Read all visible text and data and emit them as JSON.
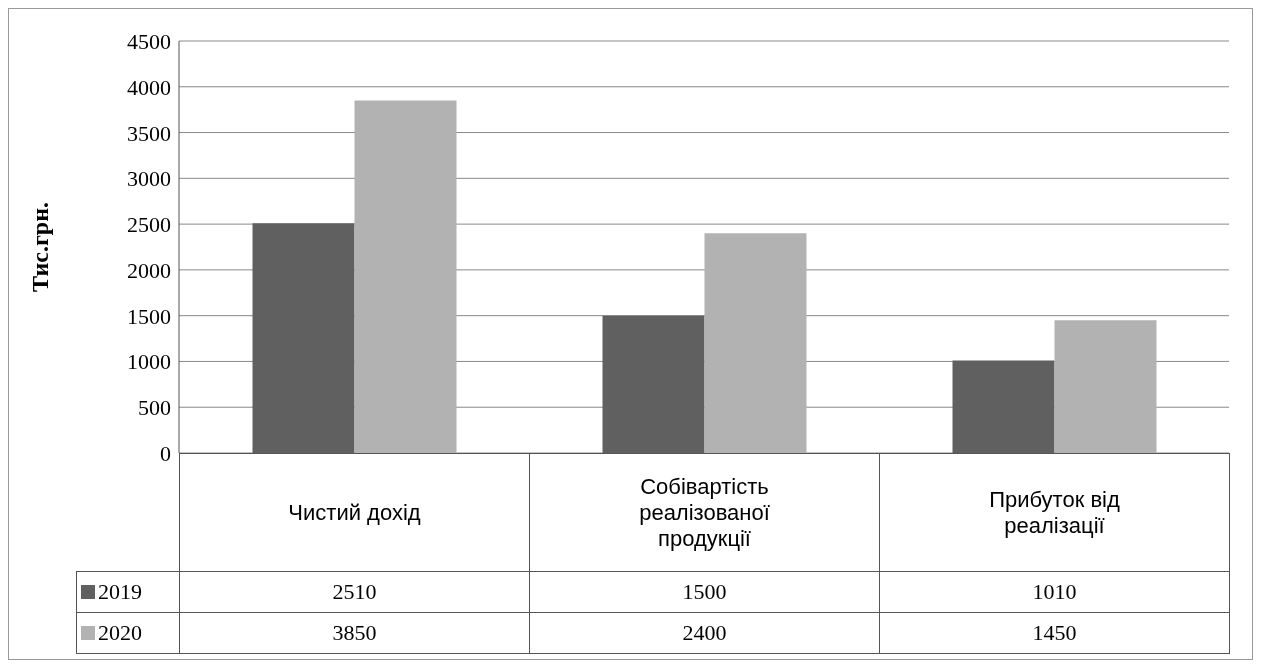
{
  "chart_data": {
    "type": "bar",
    "ylabel": "Тис.грн.",
    "categories": [
      "Чистий дохід",
      "Собівартість реалізованої продукції",
      "Прибуток від реалізації"
    ],
    "series": [
      {
        "name": "2019",
        "color": "#606060",
        "values": [
          2510,
          1500,
          1010
        ]
      },
      {
        "name": "2020",
        "color": "#b2b2b2",
        "values": [
          3850,
          2400,
          1450
        ]
      }
    ],
    "ylim": [
      0,
      4500
    ],
    "yticks": [
      0,
      500,
      1000,
      1500,
      2000,
      2500,
      3000,
      3500,
      4000,
      4500
    ],
    "grid": "y",
    "legend": "bottom",
    "data_labels": true
  }
}
